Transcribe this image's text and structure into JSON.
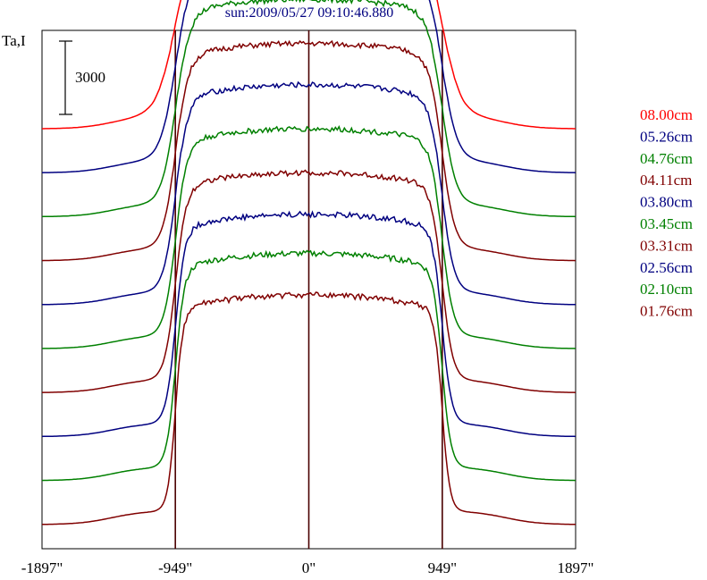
{
  "title": "sun:2009/05/27 09:10:46.880",
  "ylabel": "Ta,I",
  "scale_bar_label": "3000",
  "chart_data": {
    "type": "line",
    "title": "sun:2009/05/27 09:10:46.880",
    "xlabel": "",
    "ylabel": "Ta,I",
    "xlim": [
      -1897,
      1897
    ],
    "x_ticks": [
      -1897,
      -949,
      0,
      949,
      1897
    ],
    "x_tick_labels": [
      "-1897\"",
      "-949\"",
      "0\"",
      "949\"",
      "1897\""
    ],
    "vertical_markers": [
      -949,
      0,
      949
    ],
    "scale_bar": 3000,
    "offset_between_traces": 1800,
    "legend_position": "right",
    "grid": false,
    "series": [
      {
        "name": "08.00cm",
        "color": "#ff0000",
        "baseline": 16200,
        "disk_amplitude": 8600,
        "limb_width": 150
      },
      {
        "name": "05.26cm",
        "color": "#000080",
        "baseline": 14400,
        "disk_amplitude": 8800,
        "limb_width": 120
      },
      {
        "name": "04.76cm",
        "color": "#008000",
        "baseline": 12600,
        "disk_amplitude": 8900,
        "limb_width": 110
      },
      {
        "name": "04.11cm",
        "color": "#800000",
        "baseline": 10800,
        "disk_amplitude": 8900,
        "limb_width": 100
      },
      {
        "name": "03.80cm",
        "color": "#000080",
        "baseline": 9000,
        "disk_amplitude": 9000,
        "limb_width": 95
      },
      {
        "name": "03.45cm",
        "color": "#008000",
        "baseline": 7200,
        "disk_amplitude": 9000,
        "limb_width": 90
      },
      {
        "name": "03.31cm",
        "color": "#800000",
        "baseline": 5400,
        "disk_amplitude": 9000,
        "limb_width": 85
      },
      {
        "name": "02.56cm",
        "color": "#000080",
        "baseline": 3600,
        "disk_amplitude": 9100,
        "limb_width": 75
      },
      {
        "name": "02.10cm",
        "color": "#008000",
        "baseline": 1800,
        "disk_amplitude": 9300,
        "limb_width": 70
      },
      {
        "name": "01.76cm",
        "color": "#800000",
        "baseline": 0,
        "disk_amplitude": 9400,
        "limb_width": 60
      }
    ]
  }
}
